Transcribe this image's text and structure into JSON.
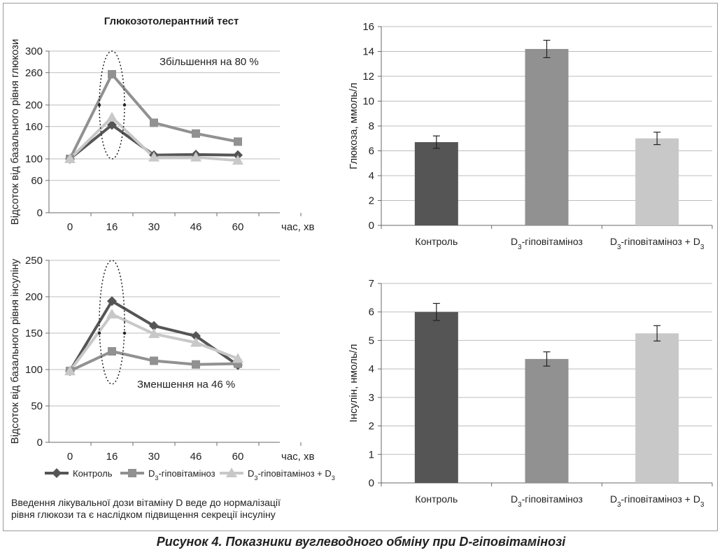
{
  "caption": "Рисунок 4. Показники вуглеводного обміну при D-гіповітамінозі",
  "note": {
    "line1": "Введення лікувальної дози вітаміну D веде до нормалізації",
    "line2": "рівня глюкози та є наслідком підвищення секреції інсуліну"
  },
  "colors": {
    "control": "#555555",
    "hypo": "#919191",
    "hypo_d3": "#c8c8c8",
    "grid": "#bdbdbd",
    "axis": "#6a6a6a"
  },
  "chart_data": [
    {
      "id": "glucose-tolerance",
      "type": "line",
      "title": "Глюкозотолерантний тест",
      "xlabel": "час, хв",
      "ylabel": "Відсоток від базального рівня глюкози",
      "x": [
        "0",
        "16",
        "30",
        "46",
        "60"
      ],
      "ylim": [
        0,
        300
      ],
      "yticks": [
        0,
        60,
        100,
        160,
        200,
        260,
        300
      ],
      "grid": true,
      "annotation": "Збільшення на 80 %",
      "series": [
        {
          "name": "Контроль",
          "marker": "diamond",
          "color": "#555555",
          "values": [
            100,
            163,
            107,
            108,
            107
          ]
        },
        {
          "name": "D₃-гіповітаміноз",
          "marker": "square",
          "color": "#919191",
          "values": [
            100,
            257,
            167,
            147,
            132
          ]
        },
        {
          "name": "D₃-гіповітаміноз + D₃",
          "marker": "triangle",
          "color": "#c8c8c8",
          "values": [
            100,
            177,
            103,
            103,
            97
          ]
        }
      ]
    },
    {
      "id": "insulin-tolerance",
      "type": "line",
      "xlabel": "час, хв",
      "ylabel": "Відсоток від базального рівня інсуліну",
      "x": [
        "0",
        "16",
        "30",
        "46",
        "60"
      ],
      "ylim": [
        0,
        250
      ],
      "yticks": [
        0,
        50,
        100,
        150,
        200,
        250
      ],
      "grid": true,
      "annotation": "Зменшення на 46 %",
      "series": [
        {
          "name": "Контроль",
          "marker": "diamond",
          "color": "#555555",
          "values": [
            98,
            194,
            160,
            146,
            106
          ]
        },
        {
          "name": "D₃-гіповітаміноз",
          "marker": "square",
          "color": "#919191",
          "values": [
            98,
            125,
            112,
            107,
            108
          ]
        },
        {
          "name": "D₃-гіповітаміноз + D₃",
          "marker": "triangle",
          "color": "#c8c8c8",
          "values": [
            98,
            176,
            149,
            137,
            115
          ]
        }
      ]
    },
    {
      "id": "glucose-bars",
      "type": "bar",
      "ylabel": "Глюкоза, ммоль/л",
      "ylim": [
        0,
        16
      ],
      "yticks": [
        0,
        2,
        4,
        6,
        8,
        10,
        12,
        14,
        16
      ],
      "grid": true,
      "categories": [
        "Контроль",
        "D₃-гіповітаміноз",
        "D₃-гіповітаміноз + D₃"
      ],
      "values": [
        6.7,
        14.2,
        7.0
      ],
      "errors": [
        0.5,
        0.7,
        0.5
      ],
      "colors": [
        "#555555",
        "#919191",
        "#c8c8c8"
      ]
    },
    {
      "id": "insulin-bars",
      "type": "bar",
      "ylabel": "Інсулін, нмоль/л",
      "ylim": [
        0,
        7
      ],
      "yticks": [
        0,
        1,
        2,
        3,
        4,
        5,
        6,
        7
      ],
      "grid": true,
      "categories": [
        "Контроль",
        "D₃-гіповітаміноз",
        "D₃-гіповітаміноз + D₃"
      ],
      "values": [
        6.0,
        4.35,
        5.25
      ],
      "errors": [
        0.3,
        0.25,
        0.27
      ],
      "colors": [
        "#555555",
        "#919191",
        "#c8c8c8"
      ]
    }
  ],
  "legend": [
    {
      "name": "Контроль",
      "marker": "diamond"
    },
    {
      "name": "D₃-гіповітаміноз",
      "marker": "square"
    },
    {
      "name": "D₃-гіповітаміноз + D₃",
      "marker": "triangle"
    }
  ]
}
